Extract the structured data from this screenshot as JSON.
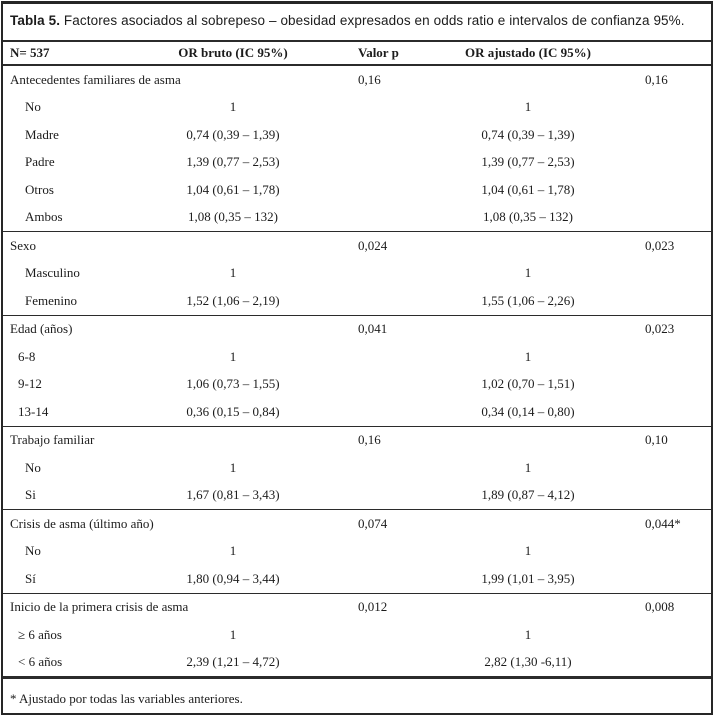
{
  "title": {
    "label": "Tabla 5.",
    "text": " Factores asociados al sobrepeso – obesidad expresados en odds ratio e intervalos de confianza 95%."
  },
  "table": {
    "headers": {
      "col_label": "N= 537",
      "col_or_crude": "OR bruto (IC 95%)",
      "col_p": "Valor p",
      "col_or_adjusted": "OR ajustado (IC 95%)",
      "col_p_adjusted": ""
    },
    "sections": [
      {
        "rows": [
          {
            "label": "Antecedentes familiares de asma",
            "level": 0,
            "or_crude": "",
            "p": "0,16",
            "or_adj": "",
            "p_adj": "0,16"
          },
          {
            "label": "No",
            "level": 2,
            "or_crude": "1",
            "p": "",
            "or_adj": "1",
            "p_adj": ""
          },
          {
            "label": "Madre",
            "level": 2,
            "or_crude": "0,74 (0,39 – 1,39)",
            "p": "",
            "or_adj": "0,74 (0,39 – 1,39)",
            "p_adj": ""
          },
          {
            "label": "Padre",
            "level": 2,
            "or_crude": "1,39 (0,77 – 2,53)",
            "p": "",
            "or_adj": "1,39 (0,77 – 2,53)",
            "p_adj": ""
          },
          {
            "label": "Otros",
            "level": 2,
            "or_crude": "1,04 (0,61 – 1,78)",
            "p": "",
            "or_adj": "1,04 (0,61 – 1,78)",
            "p_adj": ""
          },
          {
            "label": "Ambos",
            "level": 2,
            "or_crude": "1,08 (0,35 – 132)",
            "p": "",
            "or_adj": "1,08 (0,35 – 132)",
            "p_adj": ""
          }
        ]
      },
      {
        "rows": [
          {
            "label": "Sexo",
            "level": 0,
            "or_crude": "",
            "p": "0,024",
            "or_adj": "",
            "p_adj": "0,023"
          },
          {
            "label": "Masculino",
            "level": 2,
            "or_crude": "1",
            "p": "",
            "or_adj": "1",
            "p_adj": ""
          },
          {
            "label": "Femenino",
            "level": 2,
            "or_crude": "1,52 (1,06 – 2,19)",
            "p": "",
            "or_adj": "1,55 (1,06 – 2,26)",
            "p_adj": ""
          }
        ]
      },
      {
        "rows": [
          {
            "label": "Edad (años)",
            "level": 0,
            "or_crude": "",
            "p": "0,041",
            "or_adj": "",
            "p_adj": "0,023"
          },
          {
            "label": "6-8",
            "level": 1,
            "or_crude": "1",
            "p": "",
            "or_adj": "1",
            "p_adj": ""
          },
          {
            "label": "9-12",
            "level": 1,
            "or_crude": "1,06 (0,73 – 1,55)",
            "p": "",
            "or_adj": "1,02 (0,70 – 1,51)",
            "p_adj": ""
          },
          {
            "label": "13-14",
            "level": 1,
            "or_crude": "0,36 (0,15 – 0,84)",
            "p": "",
            "or_adj": "0,34 (0,14 – 0,80)",
            "p_adj": ""
          }
        ]
      },
      {
        "rows": [
          {
            "label": "Trabajo familiar",
            "level": 0,
            "or_crude": "",
            "p": "0,16",
            "or_adj": "",
            "p_adj": "0,10"
          },
          {
            "label": "No",
            "level": 2,
            "or_crude": "1",
            "p": "",
            "or_adj": "1",
            "p_adj": ""
          },
          {
            "label": "Si",
            "level": 2,
            "or_crude": "1,67 (0,81 – 3,43)",
            "p": "",
            "or_adj": "1,89 (0,87 – 4,12)",
            "p_adj": ""
          }
        ]
      },
      {
        "rows": [
          {
            "label": "Crisis de asma (último año)",
            "level": 0,
            "or_crude": "",
            "p": "0,074",
            "or_adj": "",
            "p_adj": "0,044*"
          },
          {
            "label": "No",
            "level": 2,
            "or_crude": "1",
            "p": "",
            "or_adj": "1",
            "p_adj": ""
          },
          {
            "label": "Sí",
            "level": 2,
            "or_crude": "1,80 (0,94 – 3,44)",
            "p": "",
            "or_adj": "1,99 (1,01 – 3,95)",
            "p_adj": ""
          }
        ]
      },
      {
        "rows": [
          {
            "label": "Inicio de la primera crisis de asma",
            "level": 0,
            "or_crude": "",
            "p": "0,012",
            "or_adj": "",
            "p_adj": "0,008"
          },
          {
            "label": "≥ 6 años",
            "level": 1,
            "or_crude": "1",
            "p": "",
            "or_adj": "1",
            "p_adj": ""
          },
          {
            "label": "< 6 años",
            "level": 1,
            "or_crude": "2,39 (1,21 – 4,72)",
            "p": "",
            "or_adj": "2,82 (1,30 -6,11)",
            "p_adj": ""
          }
        ]
      }
    ]
  },
  "footnote": "* Ajustado por todas las variables anteriores."
}
